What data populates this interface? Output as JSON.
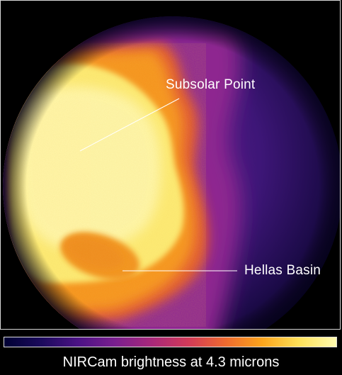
{
  "annotations": {
    "subsolar_point": "Subsolar Point",
    "hellas_basin": "Hellas Basin"
  },
  "colorbar": {
    "title": "NIRCam brightness at 4.3 microns",
    "colormap": [
      "#000033",
      "#1b0a5c",
      "#4b1285",
      "#7a1f8f",
      "#a8287a",
      "#d23a58",
      "#ee6a2f",
      "#fba51c",
      "#fde15a",
      "#fffbb0"
    ]
  },
  "colors": {
    "background": "#000000",
    "frame": "#d8d8d8",
    "text": "#ffffff",
    "limb_dark": "#150833",
    "limb_purple": "#4b1a7a",
    "mid_magenta": "#9a2a88",
    "warm_orange": "#f08a1e",
    "bright_yellow": "#fdf28a"
  }
}
